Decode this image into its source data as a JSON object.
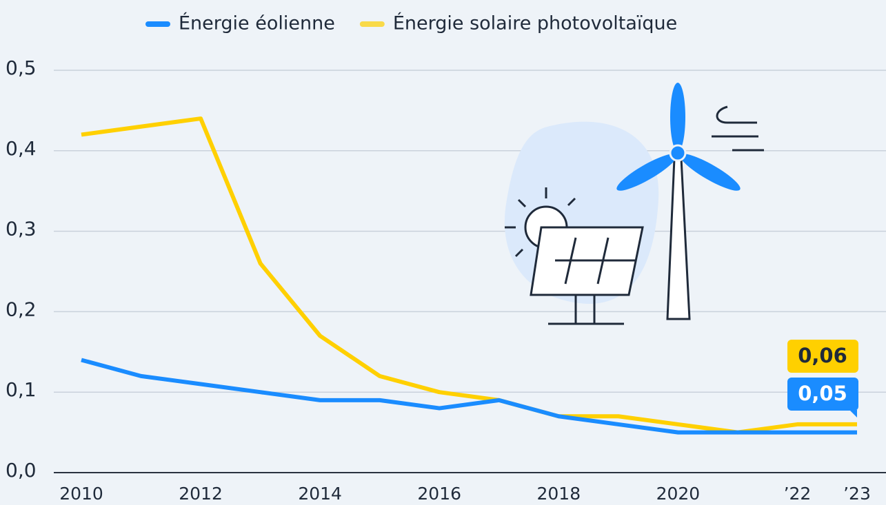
{
  "chart_data": {
    "type": "line",
    "x": [
      2010,
      2011,
      2012,
      2013,
      2014,
      2015,
      2016,
      2017,
      2018,
      2019,
      2020,
      2021,
      2022,
      2023
    ],
    "series": [
      {
        "name": "Énergie éolienne",
        "color": "#1a8cff",
        "values": [
          0.14,
          0.12,
          0.11,
          0.1,
          0.09,
          0.09,
          0.08,
          0.09,
          0.07,
          0.06,
          0.05,
          0.05,
          0.05,
          0.05
        ],
        "value_labels": [
          null,
          null,
          null,
          null,
          null,
          null,
          null,
          null,
          null,
          null,
          null,
          null,
          null,
          "0,05"
        ]
      },
      {
        "name": "Énergie solaire photovoltaïque",
        "color": "#ffd000",
        "values": [
          0.42,
          0.43,
          0.44,
          0.26,
          0.17,
          0.12,
          0.1,
          0.09,
          0.07,
          0.07,
          0.06,
          0.05,
          0.06,
          0.06
        ],
        "value_labels": [
          null,
          null,
          null,
          null,
          null,
          null,
          null,
          null,
          null,
          null,
          null,
          null,
          null,
          "0,06"
        ]
      }
    ],
    "xlim": [
      2010,
      2023
    ],
    "xticks": [
      2010,
      2012,
      2014,
      2016,
      2018,
      2020,
      {
        "value": 2022,
        "label": "’22"
      },
      {
        "value": 2023,
        "label": "’23"
      }
    ],
    "ylim": [
      0,
      0.5
    ],
    "yticks": [
      {
        "value": 0,
        "label": "0,0"
      },
      {
        "value": 0.1,
        "label": "0,1"
      },
      {
        "value": 0.2,
        "label": "0,2"
      },
      {
        "value": 0.3,
        "label": "0,3"
      },
      {
        "value": 0.4,
        "label": "0,4"
      },
      {
        "value": 0.5,
        "label": "0,5"
      }
    ],
    "grid": true,
    "legend": "top"
  }
}
